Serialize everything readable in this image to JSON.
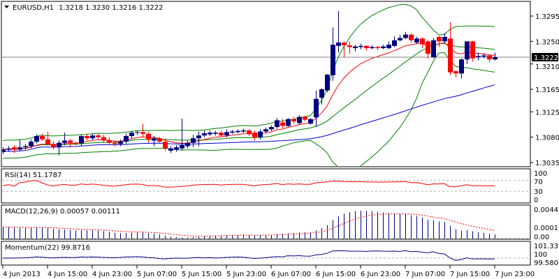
{
  "header": {
    "symbol": "EURUSD,H1",
    "ohlc_text": "1.3218 1.3230 1.3216 1.3222",
    "menu_icon": "triangle-down-icon"
  },
  "colors": {
    "bull": "#000080",
    "bear": "#ff0000",
    "bands": "#008000",
    "ma_fast": "#ff0000",
    "ma_slow": "#0000cc",
    "price_line": "#808080",
    "macd": "#000080",
    "signal": "#ff0000",
    "momentum": "#000080",
    "rsi": "#ff0000"
  },
  "current_price": "1.3222",
  "chart_data": {
    "type": "candlestick",
    "title": "EURUSD,H1",
    "ylim": [
      1.3028,
      1.3321
    ],
    "price_ticks": [
      "1.3295",
      "1.3250",
      "1.3210",
      "1.3165",
      "1.3125",
      "1.3080",
      "1.3035"
    ],
    "x_labels": [
      "4 Jun 2013",
      "4 Jun 15:00",
      "4 Jun 23:00",
      "5 Jun 07:00",
      "5 Jun 15:00",
      "5 Jun 23:00",
      "6 Jun 07:00",
      "6 Jun 15:00",
      "6 Jun 23:00",
      "7 Jun 07:00",
      "7 Jun 15:00",
      "7 Jun 23:00"
    ],
    "x_label_every_bars": 8,
    "ohlc": [
      [
        1.3054,
        1.3062,
        1.305,
        1.3058
      ],
      [
        1.3058,
        1.3064,
        1.3054,
        1.306
      ],
      [
        1.3062,
        1.3066,
        1.3052,
        1.3058
      ],
      [
        1.3058,
        1.3076,
        1.3055,
        1.3062
      ],
      [
        1.3062,
        1.3068,
        1.3058,
        1.3064
      ],
      [
        1.3064,
        1.3076,
        1.306,
        1.3072
      ],
      [
        1.3072,
        1.3085,
        1.3069,
        1.3082
      ],
      [
        1.3082,
        1.3086,
        1.3073,
        1.3076
      ],
      [
        1.3076,
        1.309,
        1.3065,
        1.3068
      ],
      [
        1.3068,
        1.3073,
        1.3058,
        1.3062
      ],
      [
        1.3062,
        1.3074,
        1.3048,
        1.307
      ],
      [
        1.307,
        1.3088,
        1.3066,
        1.3074
      ],
      [
        1.3074,
        1.3077,
        1.3062,
        1.307
      ],
      [
        1.307,
        1.3072,
        1.3066,
        1.3069
      ],
      [
        1.3069,
        1.3085,
        1.3065,
        1.3082
      ],
      [
        1.3082,
        1.3086,
        1.3074,
        1.3078
      ],
      [
        1.3078,
        1.3086,
        1.3075,
        1.3083
      ],
      [
        1.3083,
        1.3086,
        1.3077,
        1.308
      ],
      [
        1.308,
        1.3084,
        1.307,
        1.3074
      ],
      [
        1.3074,
        1.308,
        1.3066,
        1.307
      ],
      [
        1.307,
        1.3074,
        1.3064,
        1.3068
      ],
      [
        1.3068,
        1.3076,
        1.3064,
        1.3072
      ],
      [
        1.3072,
        1.3086,
        1.3068,
        1.3082
      ],
      [
        1.3082,
        1.3091,
        1.3078,
        1.3088
      ],
      [
        1.3088,
        1.3092,
        1.3084,
        1.3089
      ],
      [
        1.3089,
        1.3104,
        1.308,
        1.3086
      ],
      [
        1.3086,
        1.309,
        1.307,
        1.3076
      ],
      [
        1.3074,
        1.3082,
        1.3064,
        1.3078
      ],
      [
        1.3078,
        1.308,
        1.3068,
        1.3072
      ],
      [
        1.3072,
        1.3075,
        1.3056,
        1.306
      ],
      [
        1.3056,
        1.3064,
        1.3052,
        1.306
      ],
      [
        1.3058,
        1.3066,
        1.3054,
        1.3062
      ],
      [
        1.306,
        1.3113,
        1.3056,
        1.3066
      ],
      [
        1.3064,
        1.3074,
        1.306,
        1.307
      ],
      [
        1.307,
        1.3084,
        1.3062,
        1.3078
      ],
      [
        1.3078,
        1.309,
        1.3064,
        1.3083
      ],
      [
        1.3083,
        1.3092,
        1.308,
        1.3087
      ],
      [
        1.3085,
        1.3092,
        1.3082,
        1.3088
      ],
      [
        1.3086,
        1.3091,
        1.3083,
        1.3088
      ],
      [
        1.3088,
        1.3091,
        1.308,
        1.3083
      ],
      [
        1.3083,
        1.3094,
        1.308,
        1.3089
      ],
      [
        1.3088,
        1.3093,
        1.3086,
        1.309
      ],
      [
        1.3089,
        1.3094,
        1.3087,
        1.3091
      ],
      [
        1.309,
        1.3095,
        1.3088,
        1.3092
      ],
      [
        1.3092,
        1.3094,
        1.3082,
        1.3086
      ],
      [
        1.3088,
        1.3092,
        1.3074,
        1.308
      ],
      [
        1.308,
        1.3094,
        1.3076,
        1.309
      ],
      [
        1.309,
        1.3097,
        1.3087,
        1.3094
      ],
      [
        1.3094,
        1.3101,
        1.3091,
        1.3098
      ],
      [
        1.3098,
        1.3114,
        1.3095,
        1.311
      ],
      [
        1.3106,
        1.3112,
        1.3096,
        1.31
      ],
      [
        1.31,
        1.3114,
        1.3098,
        1.3112
      ],
      [
        1.3112,
        1.3116,
        1.3104,
        1.3108
      ],
      [
        1.3105,
        1.3119,
        1.3102,
        1.3116
      ],
      [
        1.3116,
        1.3118,
        1.3108,
        1.3111
      ],
      [
        1.3104,
        1.3114,
        1.3102,
        1.3112
      ],
      [
        1.3115,
        1.3163,
        1.3098,
        1.3148
      ],
      [
        1.315,
        1.3167,
        1.3138,
        1.3165
      ],
      [
        1.3163,
        1.3192,
        1.316,
        1.3191
      ],
      [
        1.319,
        1.3275,
        1.318,
        1.3244
      ],
      [
        1.3242,
        1.3304,
        1.323,
        1.3248
      ],
      [
        1.3248,
        1.325,
        1.3222,
        1.3243
      ],
      [
        1.3243,
        1.325,
        1.3228,
        1.324
      ],
      [
        1.3238,
        1.3244,
        1.3232,
        1.3241
      ],
      [
        1.324,
        1.3246,
        1.3236,
        1.3242
      ],
      [
        1.3242,
        1.3243,
        1.3234,
        1.3238
      ],
      [
        1.3238,
        1.3243,
        1.3236,
        1.324
      ],
      [
        1.324,
        1.3242,
        1.3234,
        1.3238
      ],
      [
        1.3238,
        1.3244,
        1.3236,
        1.3241
      ],
      [
        1.3238,
        1.325,
        1.3236,
        1.3244
      ],
      [
        1.3242,
        1.3259,
        1.324,
        1.3252
      ],
      [
        1.3252,
        1.3262,
        1.325,
        1.3256
      ],
      [
        1.3256,
        1.3267,
        1.3254,
        1.3262
      ],
      [
        1.3262,
        1.3264,
        1.3248,
        1.3252
      ],
      [
        1.3248,
        1.3258,
        1.3246,
        1.3255
      ],
      [
        1.3255,
        1.3257,
        1.3238,
        1.3245
      ],
      [
        1.325,
        1.3252,
        1.322,
        1.3228
      ],
      [
        1.3222,
        1.3256,
        1.322,
        1.3252
      ],
      [
        1.3258,
        1.326,
        1.324,
        1.325
      ],
      [
        1.325,
        1.3265,
        1.3248,
        1.3258
      ],
      [
        1.3255,
        1.3284,
        1.319,
        1.3195
      ],
      [
        1.3197,
        1.3199,
        1.3186,
        1.3193
      ],
      [
        1.3193,
        1.322,
        1.3184,
        1.3218
      ],
      [
        1.3218,
        1.325,
        1.321,
        1.325
      ],
      [
        1.325,
        1.3251,
        1.3214,
        1.322
      ],
      [
        1.3222,
        1.323,
        1.3216,
        1.3224
      ],
      [
        1.3223,
        1.3229,
        1.322,
        1.3225
      ],
      [
        1.3225,
        1.3226,
        1.3213,
        1.3218
      ],
      [
        1.3218,
        1.323,
        1.3216,
        1.3222
      ]
    ],
    "indicators": {
      "bollinger": {
        "period": 20,
        "deviation": 2
      },
      "ma_fast_period": 10,
      "ma_slow_period": 55,
      "rsi": {
        "label": "RSI(14) 51.1787",
        "period": 14,
        "levels": [
          70,
          30
        ],
        "scale": [
          "100",
          "70",
          "30",
          "0"
        ]
      },
      "macd": {
        "label": "MACD(12,26,9) 0.00057 0.00111",
        "scale_top": "0.00447",
        "scale_bottom": "0.00019",
        "scale_zero": "0.00",
        "ylim": [
          0,
          0.00447
        ]
      },
      "momentum": {
        "label": "Momentum(22) 99.8716",
        "period": 22,
        "scale_top": "101.333",
        "scale_level": "100",
        "scale_bottom": "99.5806",
        "ylim": [
          99.5806,
          101.333
        ]
      }
    }
  }
}
